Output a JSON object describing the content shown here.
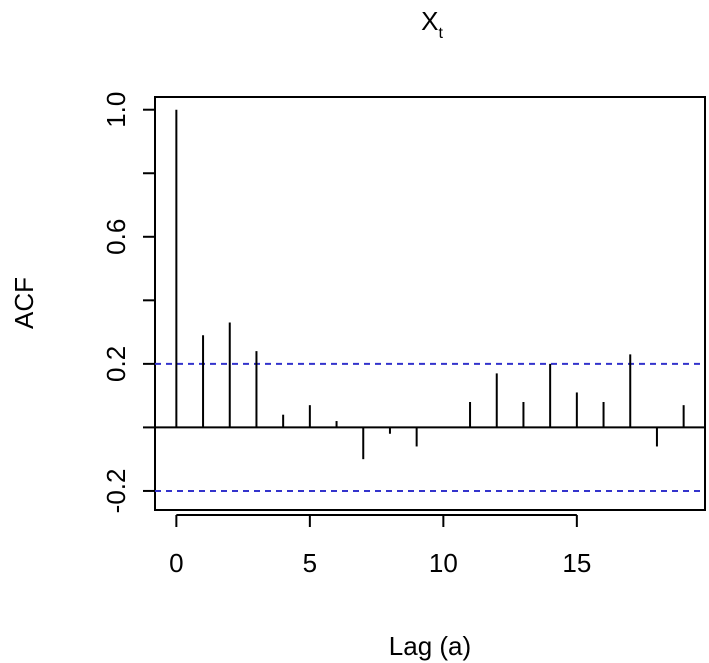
{
  "chart_data": {
    "type": "bar",
    "title": "X",
    "title_subscript": "t",
    "xlabel": "Lag (a)",
    "ylabel": "ACF",
    "x_ticks": [
      0,
      5,
      10,
      15
    ],
    "y_ticks": [
      -0.2,
      0.2,
      0.6,
      1.0
    ],
    "y_tick_labels": [
      "-0.2",
      "0.2",
      "0.6",
      "1.0"
    ],
    "xlim": [
      -0.8,
      19.8
    ],
    "ylim": [
      -0.26,
      1.04
    ],
    "lags": [
      0,
      1,
      2,
      3,
      4,
      5,
      6,
      7,
      8,
      9,
      10,
      11,
      12,
      13,
      14,
      15,
      16,
      17,
      18,
      19
    ],
    "values": [
      1.0,
      0.29,
      0.33,
      0.24,
      0.04,
      0.07,
      0.02,
      -0.1,
      -0.02,
      -0.06,
      0.0,
      0.08,
      0.17,
      0.08,
      0.2,
      0.11,
      0.08,
      0.23,
      -0.06,
      0.07
    ],
    "confidence_bound": 0.2,
    "colors": {
      "bars": "#000000",
      "confidence_lines": "#3333cc",
      "axis": "#000000"
    }
  }
}
